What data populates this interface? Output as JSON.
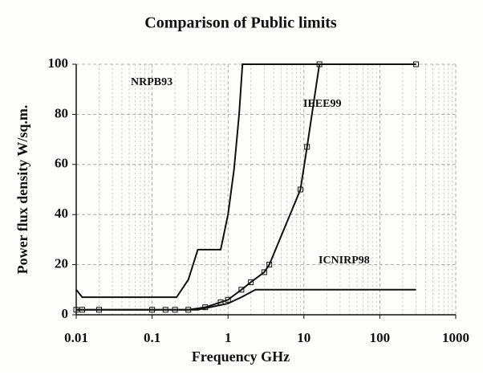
{
  "chart_data": {
    "type": "line",
    "title": "Comparison of Public limits",
    "xlabel": "Frequency GHz",
    "ylabel": "Power flux density W/sq.m.",
    "xscale": "log",
    "xlim": [
      0.01,
      1000
    ],
    "xticks": [
      0.01,
      0.1,
      1,
      10,
      100,
      1000
    ],
    "ylim": [
      0,
      100
    ],
    "yticks": [
      0,
      20,
      40,
      60,
      80,
      100
    ],
    "grid": true,
    "series": [
      {
        "name": "NRPB93",
        "color": "#111111",
        "marker": "none",
        "x": [
          0.01,
          0.012,
          0.21,
          0.3,
          0.4,
          0.8,
          1,
          1.2,
          1.4,
          1.55,
          300
        ],
        "values": [
          10,
          7,
          7,
          14,
          26,
          26,
          40,
          58,
          80,
          100,
          100
        ]
      },
      {
        "name": "IEEE99",
        "color": "#111111",
        "marker": "square",
        "x": [
          0.01,
          0.012,
          0.02,
          0.1,
          0.15,
          0.2,
          0.3,
          0.5,
          0.8,
          1,
          1.5,
          2,
          3,
          3.5,
          9,
          11,
          16,
          300
        ],
        "values": [
          2,
          2,
          2,
          2,
          2,
          2,
          2,
          3,
          5,
          6,
          10,
          13,
          17,
          20,
          50,
          67,
          100,
          100
        ]
      },
      {
        "name": "ICNIRP98",
        "color": "#111111",
        "marker": "none",
        "x": [
          0.01,
          0.3,
          0.4,
          1,
          1.5,
          2.3,
          300
        ],
        "values": [
          2,
          2,
          2,
          4.5,
          7,
          10,
          10
        ]
      }
    ]
  }
}
